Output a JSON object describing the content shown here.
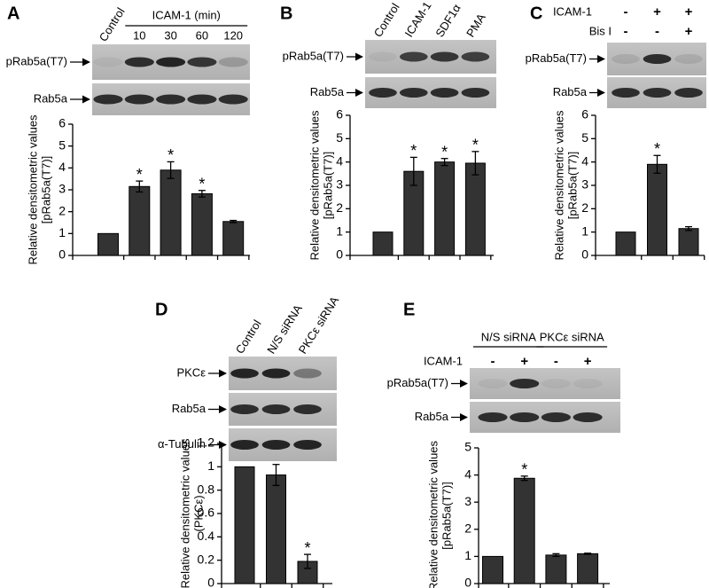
{
  "chart_data": [
    {
      "type": "bar",
      "panel": "A",
      "header": "ICAM-1 (min)",
      "categories": [
        "Control",
        "10",
        "30",
        "60",
        "120"
      ],
      "blots": [
        "pRab5a(T7)",
        "Rab5a"
      ],
      "y_label": [
        "Relative densitometric values",
        "[pRab5a(T7)]"
      ],
      "values": [
        1,
        3.15,
        3.9,
        2.82,
        1.55
      ],
      "errors": [
        null,
        0.25,
        0.38,
        0.15,
        0.05
      ],
      "significance": [
        null,
        "*",
        "*",
        "*",
        null
      ],
      "ylim": [
        0,
        6
      ],
      "yticks": [
        0,
        1,
        2,
        3,
        4,
        5,
        6
      ],
      "color": "#333333"
    },
    {
      "type": "bar",
      "panel": "B",
      "categories": [
        "Control",
        "ICAM-1",
        "SDF1α",
        "PMA"
      ],
      "blots": [
        "pRab5a(T7)",
        "Rab5a"
      ],
      "y_label": [
        "Relative densitometric values",
        "[pRab5a(T7)]"
      ],
      "values": [
        1,
        3.6,
        4.0,
        3.95
      ],
      "errors": [
        null,
        0.6,
        0.15,
        0.5
      ],
      "significance": [
        null,
        "*",
        "*",
        "*"
      ],
      "ylim": [
        0,
        6
      ],
      "yticks": [
        0,
        1,
        2,
        3,
        4,
        5,
        6
      ],
      "color": "#333333"
    },
    {
      "type": "bar",
      "panel": "C",
      "conditions": [
        {
          "name": "ICAM-1",
          "values": [
            "-",
            "+",
            "+"
          ]
        },
        {
          "name": "Bis I",
          "values": [
            "-",
            "-",
            "+"
          ]
        }
      ],
      "blots": [
        "pRab5a(T7)",
        "Rab5a"
      ],
      "y_label": [
        "Relative densitometric values",
        "[pRab5a(T7)]"
      ],
      "values": [
        1,
        3.9,
        1.15
      ],
      "errors": [
        null,
        0.38,
        0.08
      ],
      "significance": [
        null,
        "*",
        null
      ],
      "ylim": [
        0,
        6
      ],
      "yticks": [
        0,
        1,
        2,
        3,
        4,
        5,
        6
      ],
      "color": "#333333"
    },
    {
      "type": "bar",
      "panel": "D",
      "categories": [
        "Control",
        "N/S siRNA",
        "PKCε siRNA"
      ],
      "blots": [
        "PKCε",
        "Rab5a",
        "α-Tubulin"
      ],
      "y_label": [
        "Relative densitometric values",
        "(PKCε)"
      ],
      "values": [
        1,
        0.93,
        0.19
      ],
      "errors": [
        null,
        0.09,
        0.06
      ],
      "significance": [
        null,
        null,
        "*"
      ],
      "ylim": [
        0,
        1.2
      ],
      "yticks": [
        0,
        0.2,
        0.4,
        0.6,
        0.8,
        1,
        1.2
      ],
      "color": "#333333"
    },
    {
      "type": "bar",
      "panel": "E",
      "groups": [
        "N/S siRNA",
        "PKCε siRNA"
      ],
      "conditions": [
        {
          "name": "ICAM-1",
          "values": [
            "-",
            "+",
            "-",
            "+"
          ]
        }
      ],
      "blots": [
        "pRab5a(T7)",
        "Rab5a"
      ],
      "y_label": [
        "Relative densitometric values",
        "[pRab5a(T7)]"
      ],
      "values": [
        1,
        3.88,
        1.05,
        1.1
      ],
      "errors": [
        null,
        0.08,
        0.05,
        0.02
      ],
      "significance": [
        null,
        "*",
        null,
        null
      ],
      "ylim": [
        0,
        5
      ],
      "yticks": [
        0,
        1,
        2,
        3,
        4,
        5
      ],
      "color": "#333333"
    }
  ]
}
